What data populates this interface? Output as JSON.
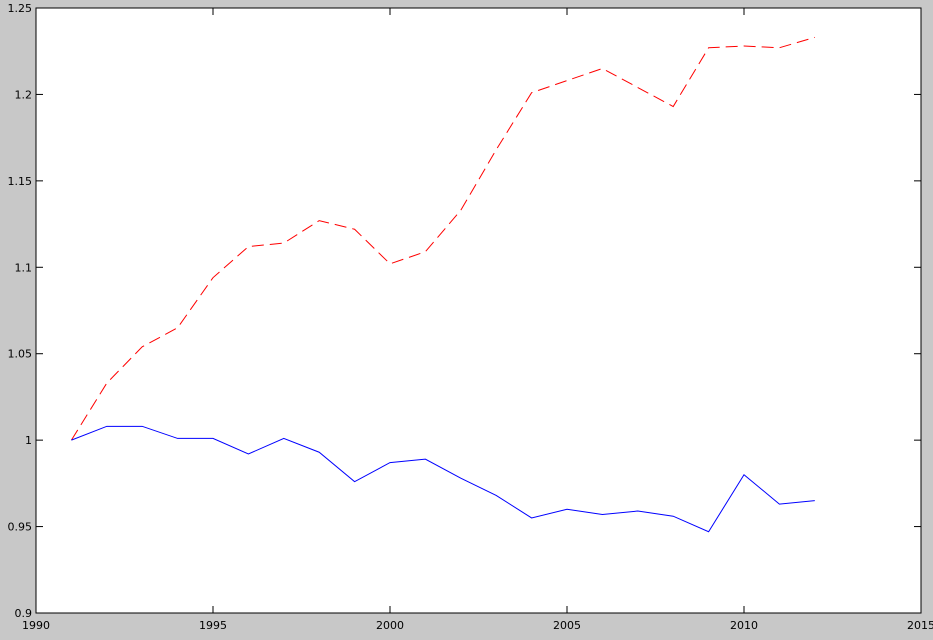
{
  "chart_data": {
    "type": "line",
    "x": [
      1991,
      1992,
      1993,
      1994,
      1995,
      1996,
      1997,
      1998,
      1999,
      2000,
      2001,
      2002,
      2003,
      2004,
      2005,
      2006,
      2007,
      2008,
      2009,
      2010,
      2011,
      2012
    ],
    "series": [
      {
        "color": "#ff0000",
        "dash": true,
        "values": [
          1.0,
          1.033,
          1.054,
          1.065,
          1.094,
          1.112,
          1.114,
          1.127,
          1.122,
          1.102,
          1.109,
          1.133,
          1.168,
          1.201,
          1.208,
          1.215,
          1.204,
          1.193,
          1.227,
          1.228,
          1.227,
          1.233
        ]
      },
      {
        "color": "#0000ff",
        "dash": false,
        "values": [
          1.0,
          1.008,
          1.008,
          1.001,
          1.001,
          0.992,
          1.001,
          0.993,
          0.976,
          0.987,
          0.989,
          0.978,
          0.968,
          0.955,
          0.96,
          0.957,
          0.959,
          0.956,
          0.947,
          0.98,
          0.963,
          0.965
        ]
      }
    ],
    "xlim": [
      1990,
      2015
    ],
    "xticks": [
      1990,
      1995,
      2000,
      2005,
      2010,
      2015
    ],
    "ylim": [
      0.9,
      1.25
    ],
    "yticks": [
      0.9,
      0.95,
      1,
      1.05,
      1.1,
      1.15,
      1.2,
      1.25
    ],
    "grid": false
  }
}
